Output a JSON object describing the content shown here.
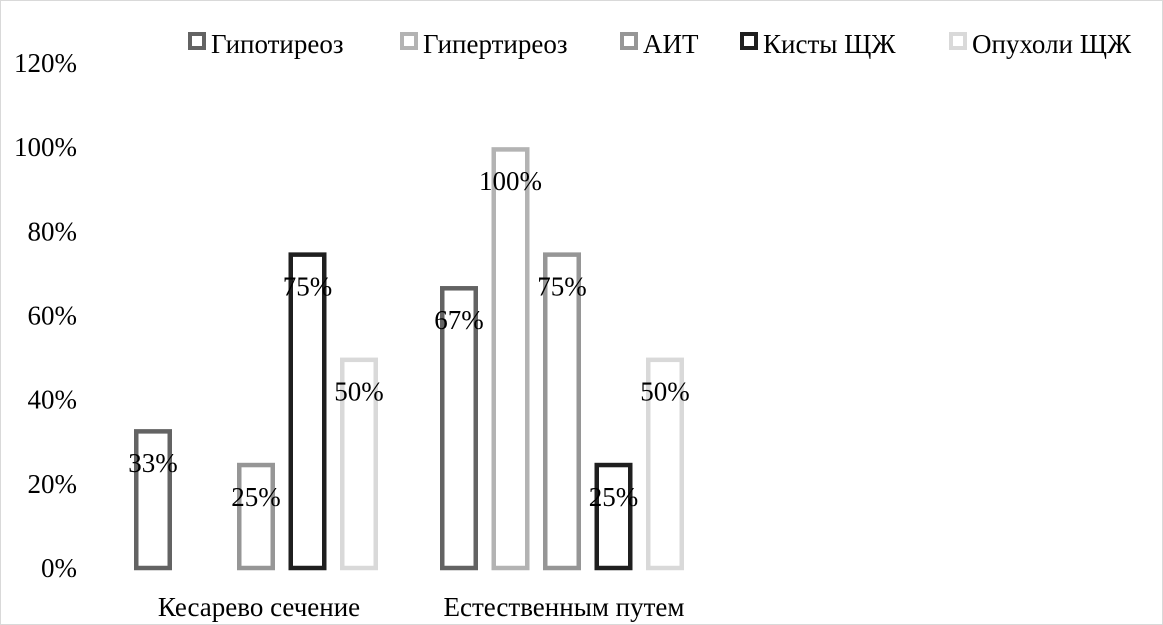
{
  "chart_data": {
    "type": "bar",
    "categories": [
      "Кесарево сечение",
      "Естественным путем"
    ],
    "series": [
      {
        "name": "Гипотиреоз",
        "values": [
          33,
          67
        ],
        "labels": [
          "33%",
          "67%"
        ],
        "color": "#636363"
      },
      {
        "name": "Гипертиреоз",
        "values": [
          0,
          100
        ],
        "labels": [
          "",
          "100%"
        ],
        "color": "#b3b3b3"
      },
      {
        "name": "АИТ",
        "values": [
          25,
          75
        ],
        "labels": [
          "25%",
          "75%"
        ],
        "color": "#969696"
      },
      {
        "name": "Кисты ЩЖ",
        "values": [
          75,
          25
        ],
        "labels": [
          "75%",
          "25%"
        ],
        "color": "#1f1f1f"
      },
      {
        "name": "Опухоли ЩЖ",
        "values": [
          50,
          50
        ],
        "labels": [
          "50%",
          "50%"
        ],
        "color": "#d9d9d9"
      }
    ],
    "y_ticks": [
      "0%",
      "20%",
      "40%",
      "60%",
      "80%",
      "100%",
      "120%"
    ],
    "ylim": [
      0,
      120
    ],
    "grid": false,
    "legend_position": "top"
  }
}
